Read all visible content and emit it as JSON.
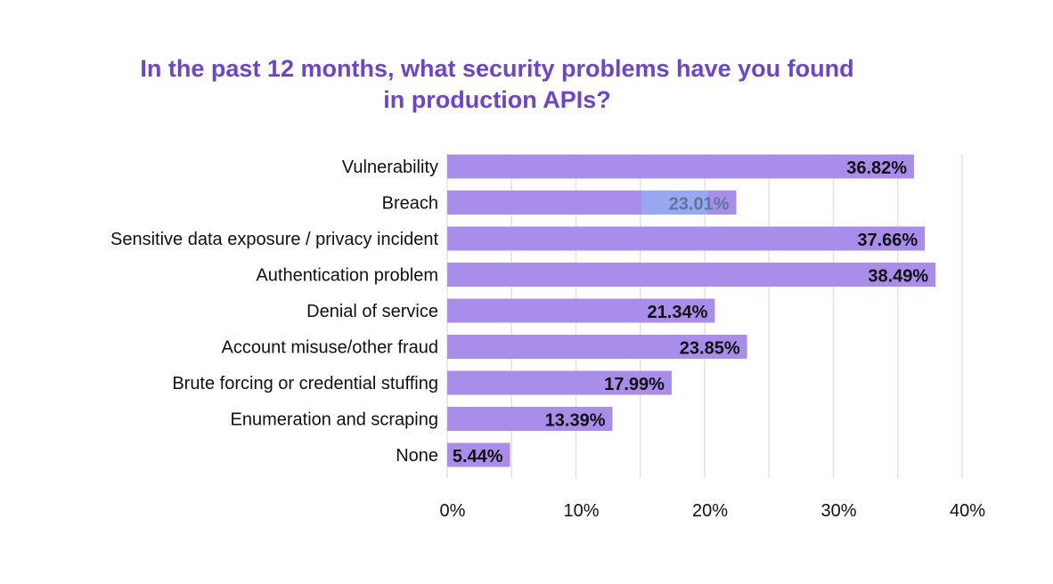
{
  "chart_data": {
    "type": "bar",
    "orientation": "horizontal",
    "title_lines": [
      "In the past 12 months, what security problems have you found",
      "in production APIs?"
    ],
    "categories": [
      "Vulnerability",
      "Breach",
      "Sensitive data exposure / privacy incident",
      "Authentication problem",
      "Denial of service",
      "Account misuse/other fraud",
      "Brute forcing or credential stuffing",
      "Enumeration and scraping",
      "None"
    ],
    "values": [
      36.82,
      23.01,
      37.66,
      38.49,
      21.34,
      23.85,
      17.99,
      13.39,
      5.44
    ],
    "data_labels": [
      "36.82%",
      "23.01%",
      "37.66%",
      "38.49%",
      "21.34%",
      "23.85%",
      "17.99%",
      "13.39%",
      "5.44%"
    ],
    "xlim": [
      0,
      40
    ],
    "x_ticks": [
      0,
      10,
      20,
      30,
      40
    ],
    "x_tick_labels": [
      "0%",
      "10%",
      "20%",
      "30%",
      "40%"
    ],
    "minor_gridlines_every": 5,
    "grid": true,
    "xlabel": "",
    "ylabel": "",
    "colors": {
      "bar": "#a98deb",
      "title": "#6b44d0",
      "grid": "#e3e3e3",
      "highlight": "#98a8f0"
    }
  }
}
